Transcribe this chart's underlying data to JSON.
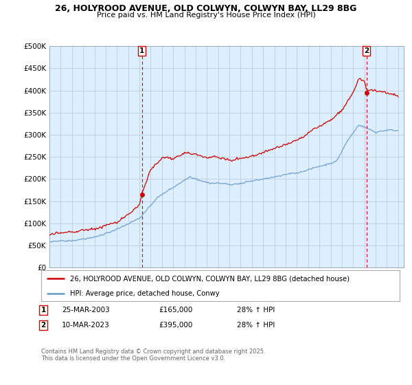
{
  "title1": "26, HOLYROOD AVENUE, OLD COLWYN, COLWYN BAY, LL29 8BG",
  "title2": "Price paid vs. HM Land Registry's House Price Index (HPI)",
  "ylabel_ticks": [
    "£0",
    "£50K",
    "£100K",
    "£150K",
    "£200K",
    "£250K",
    "£300K",
    "£350K",
    "£400K",
    "£450K",
    "£500K"
  ],
  "ytick_values": [
    0,
    50000,
    100000,
    150000,
    200000,
    250000,
    300000,
    350000,
    400000,
    450000,
    500000
  ],
  "ylim": [
    0,
    500000
  ],
  "xlim_start": 1995.0,
  "xlim_end": 2026.5,
  "legend_line1": "26, HOLYROOD AVENUE, OLD COLWYN, COLWYN BAY, LL29 8BG (detached house)",
  "legend_line2": "HPI: Average price, detached house, Conwy",
  "sale1_label": "1",
  "sale1_date": "25-MAR-2003",
  "sale1_price": "£165,000",
  "sale1_hpi": "28% ↑ HPI",
  "sale2_label": "2",
  "sale2_date": "10-MAR-2023",
  "sale2_price": "£395,000",
  "sale2_hpi": "28% ↑ HPI",
  "copyright": "Contains HM Land Registry data © Crown copyright and database right 2025.\nThis data is licensed under the Open Government Licence v3.0.",
  "red_color": "#cc0000",
  "blue_color": "#6699cc",
  "bg_color": "#ffffff",
  "plot_bg_color": "#ddeeff",
  "grid_color": "#bbccdd",
  "sale1_x": 2003.23,
  "sale2_x": 2023.19,
  "sale1_y": 165000,
  "sale2_y": 395000
}
